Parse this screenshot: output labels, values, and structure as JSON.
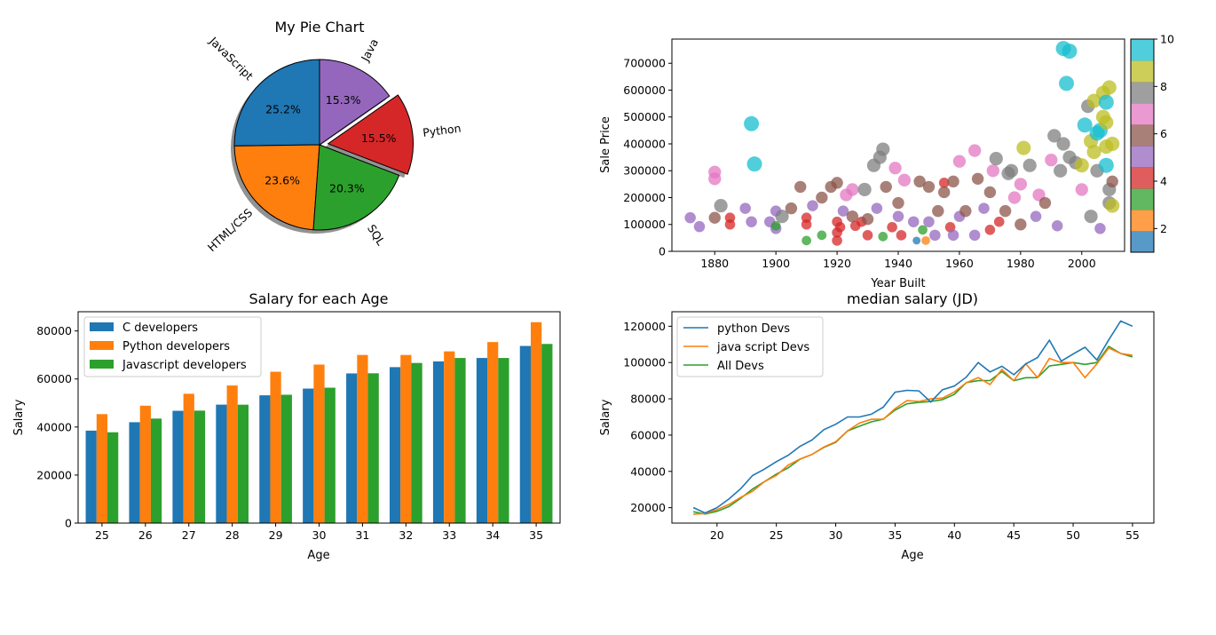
{
  "chart_data": [
    {
      "type": "pie",
      "title": "My Pie Chart",
      "labels": [
        "JavaScript",
        "HTML/CSS",
        "SQL",
        "Python",
        "Java"
      ],
      "percent_labels": [
        "25.2%",
        "23.6%",
        "20.3%",
        "15.5%",
        "15.3%"
      ],
      "values": [
        25.2,
        23.6,
        20.3,
        15.5,
        15.3
      ],
      "colors": [
        "#1f77b4",
        "#ff7f0e",
        "#2ca02c",
        "#d62728",
        "#9467bd"
      ],
      "explode": [
        0,
        0,
        0,
        0.1,
        0
      ],
      "shadow": true,
      "start_angle_deg": 90
    },
    {
      "type": "scatter",
      "title": "",
      "xlabel": "Year Built",
      "ylabel": "Sale Price",
      "xlim": [
        1866,
        2014
      ],
      "ylim": [
        0,
        790000
      ],
      "xticks": [
        1880,
        1900,
        1920,
        1940,
        1960,
        1980,
        2000
      ],
      "yticks": [
        0,
        100000,
        200000,
        300000,
        400000,
        500000,
        600000,
        700000
      ],
      "colorbar": {
        "min": 1,
        "max": 10,
        "ticks": [
          2,
          4,
          6,
          8,
          10
        ],
        "colormap": "tab10"
      },
      "points": [
        [
          1872,
          125000,
          5
        ],
        [
          1875,
          92000,
          5
        ],
        [
          1880,
          295000,
          7
        ],
        [
          1880,
          270000,
          7
        ],
        [
          1880,
          125000,
          6
        ],
        [
          1882,
          170000,
          8
        ],
        [
          1885,
          100000,
          4
        ],
        [
          1885,
          125000,
          4
        ],
        [
          1890,
          160000,
          5
        ],
        [
          1892,
          475000,
          10
        ],
        [
          1892,
          110000,
          5
        ],
        [
          1893,
          325000,
          10
        ],
        [
          1898,
          110000,
          5
        ],
        [
          1900,
          150000,
          5
        ],
        [
          1900,
          85000,
          5
        ],
        [
          1900,
          95000,
          3
        ],
        [
          1902,
          130000,
          8
        ],
        [
          1905,
          160000,
          6
        ],
        [
          1908,
          240000,
          6
        ],
        [
          1910,
          40000,
          3
        ],
        [
          1910,
          100000,
          4
        ],
        [
          1910,
          125000,
          4
        ],
        [
          1912,
          170000,
          5
        ],
        [
          1915,
          60000,
          3
        ],
        [
          1915,
          200000,
          6
        ],
        [
          1918,
          240000,
          6
        ],
        [
          1920,
          255000,
          6
        ],
        [
          1920,
          40000,
          4
        ],
        [
          1920,
          70000,
          4
        ],
        [
          1920,
          110000,
          4
        ],
        [
          1921,
          90000,
          4
        ],
        [
          1922,
          150000,
          5
        ],
        [
          1923,
          210000,
          7
        ],
        [
          1925,
          230000,
          7
        ],
        [
          1925,
          130000,
          6
        ],
        [
          1926,
          95000,
          4
        ],
        [
          1928,
          110000,
          4
        ],
        [
          1929,
          230000,
          8
        ],
        [
          1930,
          60000,
          4
        ],
        [
          1930,
          120000,
          6
        ],
        [
          1932,
          320000,
          8
        ],
        [
          1933,
          160000,
          5
        ],
        [
          1934,
          350000,
          8
        ],
        [
          1935,
          380000,
          8
        ],
        [
          1935,
          55000,
          3
        ],
        [
          1936,
          240000,
          6
        ],
        [
          1938,
          90000,
          4
        ],
        [
          1939,
          310000,
          7
        ],
        [
          1940,
          180000,
          6
        ],
        [
          1940,
          130000,
          5
        ],
        [
          1941,
          60000,
          4
        ],
        [
          1942,
          265000,
          7
        ],
        [
          1945,
          110000,
          5
        ],
        [
          1946,
          40000,
          1
        ],
        [
          1947,
          260000,
          6
        ],
        [
          1948,
          80000,
          3
        ],
        [
          1949,
          40000,
          2
        ],
        [
          1950,
          240000,
          6
        ],
        [
          1950,
          110000,
          5
        ],
        [
          1952,
          60000,
          5
        ],
        [
          1953,
          150000,
          6
        ],
        [
          1955,
          255000,
          4
        ],
        [
          1955,
          220000,
          6
        ],
        [
          1957,
          90000,
          4
        ],
        [
          1958,
          260000,
          6
        ],
        [
          1958,
          60000,
          5
        ],
        [
          1960,
          335000,
          7
        ],
        [
          1960,
          130000,
          5
        ],
        [
          1962,
          150000,
          6
        ],
        [
          1965,
          375000,
          7
        ],
        [
          1965,
          60000,
          5
        ],
        [
          1966,
          270000,
          6
        ],
        [
          1968,
          160000,
          5
        ],
        [
          1970,
          80000,
          4
        ],
        [
          1970,
          220000,
          6
        ],
        [
          1971,
          300000,
          7
        ],
        [
          1972,
          345000,
          8
        ],
        [
          1973,
          110000,
          4
        ],
        [
          1975,
          150000,
          6
        ],
        [
          1976,
          290000,
          8
        ],
        [
          1977,
          300000,
          8
        ],
        [
          1978,
          200000,
          7
        ],
        [
          1980,
          250000,
          7
        ],
        [
          1980,
          100000,
          6
        ],
        [
          1981,
          385000,
          9
        ],
        [
          1983,
          320000,
          8
        ],
        [
          1985,
          130000,
          5
        ],
        [
          1986,
          210000,
          7
        ],
        [
          1988,
          180000,
          6
        ],
        [
          1990,
          340000,
          7
        ],
        [
          1991,
          430000,
          8
        ],
        [
          1992,
          95000,
          5
        ],
        [
          1993,
          300000,
          8
        ],
        [
          1994,
          400000,
          8
        ],
        [
          1994,
          755000,
          10
        ],
        [
          1995,
          625000,
          10
        ],
        [
          1996,
          745000,
          10
        ],
        [
          1996,
          350000,
          8
        ],
        [
          1998,
          330000,
          8
        ],
        [
          2000,
          320000,
          9
        ],
        [
          2000,
          230000,
          7
        ],
        [
          2001,
          470000,
          10
        ],
        [
          2002,
          540000,
          8
        ],
        [
          2003,
          410000,
          9
        ],
        [
          2003,
          130000,
          8
        ],
        [
          2004,
          560000,
          9
        ],
        [
          2004,
          370000,
          9
        ],
        [
          2005,
          440000,
          10
        ],
        [
          2005,
          300000,
          8
        ],
        [
          2006,
          450000,
          10
        ],
        [
          2006,
          85000,
          5
        ],
        [
          2007,
          590000,
          9
        ],
        [
          2007,
          500000,
          9
        ],
        [
          2008,
          555000,
          10
        ],
        [
          2008,
          480000,
          9
        ],
        [
          2008,
          390000,
          9
        ],
        [
          2008,
          320000,
          10
        ],
        [
          2009,
          610000,
          9
        ],
        [
          2009,
          230000,
          8
        ],
        [
          2009,
          180000,
          8
        ],
        [
          2010,
          400000,
          9
        ],
        [
          2010,
          260000,
          6
        ],
        [
          2010,
          170000,
          9
        ]
      ]
    },
    {
      "type": "bar",
      "title": "Salary for each Age",
      "xlabel": "Age",
      "ylabel": "Salary",
      "categories": [
        "25",
        "26",
        "27",
        "28",
        "29",
        "30",
        "31",
        "32",
        "33",
        "34",
        "35"
      ],
      "ylim": [
        0,
        88000
      ],
      "yticks": [
        0,
        20000,
        40000,
        60000,
        80000
      ],
      "legend_position": "upper-left",
      "series": [
        {
          "name": "C developers",
          "color": "#1f77b4",
          "values": [
            38496,
            42000,
            46752,
            49320,
            53200,
            56000,
            62316,
            64928,
            67317,
            68748,
            73752
          ]
        },
        {
          "name": "Python developers",
          "color": "#ff7f0e",
          "values": [
            45372,
            48876,
            53850,
            57287,
            63016,
            65998,
            70003,
            70000,
            71496,
            75370,
            83640
          ]
        },
        {
          "name": "Javascript developers",
          "color": "#2ca02c",
          "values": [
            37810,
            43515,
            46823,
            49293,
            53437,
            56373,
            62375,
            66674,
            68745,
            68746,
            74583
          ]
        }
      ]
    },
    {
      "type": "line",
      "title": "median salary (JD)",
      "xlabel": "Age",
      "ylabel": "Salary",
      "xlim": [
        16.2,
        56.8
      ],
      "ylim": [
        11500,
        128000
      ],
      "xticks": [
        20,
        25,
        30,
        35,
        40,
        45,
        50,
        55
      ],
      "yticks": [
        20000,
        40000,
        60000,
        80000,
        100000,
        120000
      ],
      "legend_position": "upper-left",
      "x": [
        18,
        19,
        20,
        21,
        22,
        23,
        24,
        25,
        26,
        27,
        28,
        29,
        30,
        31,
        32,
        33,
        34,
        35,
        36,
        37,
        38,
        39,
        40,
        41,
        42,
        43,
        44,
        45,
        46,
        47,
        48,
        49,
        50,
        51,
        52,
        53,
        54,
        55
      ],
      "series": [
        {
          "name": "python Devs",
          "color": "#1f77b4",
          "values": [
            20046,
            17100,
            20000,
            24744,
            30500,
            37732,
            41247,
            45372,
            48876,
            53850,
            57287,
            63016,
            65998,
            70003,
            70000,
            71496,
            75370,
            83640,
            84666,
            84392,
            78254,
            85000,
            87038,
            91991,
            100000,
            94796,
            97962,
            93302,
            99240,
            102736,
            112285,
            100771,
            104708,
            108423,
            101407,
            112542,
            122870,
            120000
          ]
        },
        {
          "name": "java script Devs",
          "color": "#ff7f0e",
          "values": [
            16446,
            16791,
            18942,
            21780,
            25704,
            29000,
            34372,
            37810,
            43515,
            46823,
            49293,
            53437,
            56373,
            62375,
            66674,
            68745,
            68746,
            74583,
            79000,
            78508,
            79996,
            80403,
            83820,
            88833,
            91660,
            87892,
            96243,
            90000,
            99313,
            91660,
            102264,
            100000,
            100000,
            91660,
            99240,
            108000,
            105000,
            104000
          ]
        },
        {
          "name": "All Devs",
          "color": "#2ca02c",
          "values": [
            17784,
            16500,
            18012,
            20628,
            25206,
            30252,
            34368,
            38496,
            42000,
            46752,
            49320,
            53200,
            56000,
            62316,
            64928,
            67317,
            68748,
            73752,
            77232,
            78000,
            78508,
            79536,
            82488,
            88935,
            90000,
            90056,
            95000,
            90000,
            91633,
            91660,
            98150,
            98964,
            100000,
            98988,
            100000,
            108923,
            105000,
            103117
          ]
        }
      ]
    }
  ]
}
